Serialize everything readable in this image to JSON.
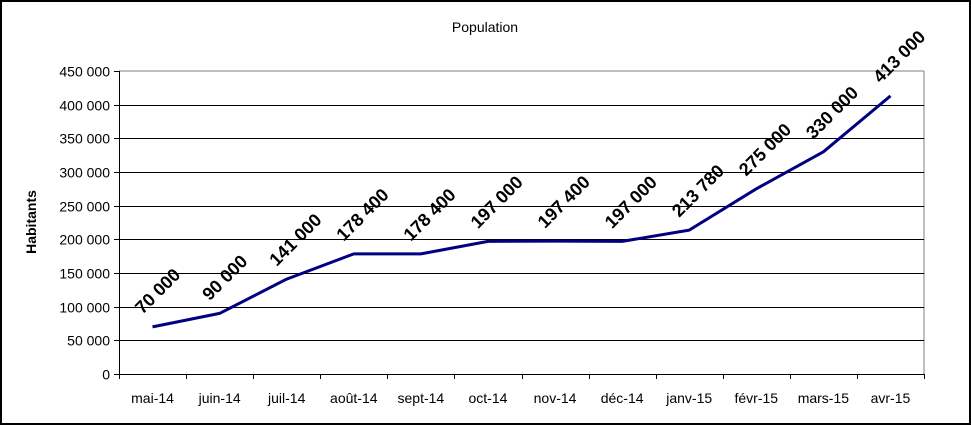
{
  "chart_data": {
    "type": "line",
    "title": "Population",
    "xlabel": "",
    "ylabel": "Habitants",
    "ylim": [
      0,
      450000
    ],
    "yticks": [
      0,
      50000,
      100000,
      150000,
      200000,
      250000,
      300000,
      350000,
      400000,
      450000
    ],
    "ytick_labels": [
      "0",
      "50 000",
      "100 000",
      "150 000",
      "200 000",
      "250 000",
      "300 000",
      "350 000",
      "400 000",
      "450 000"
    ],
    "grid": true,
    "legend": "none",
    "categories": [
      "mai-14",
      "juin-14",
      "juil-14",
      "août-14",
      "sept-14",
      "oct-14",
      "nov-14",
      "déc-14",
      "janv-15",
      "févr-15",
      "mars-15",
      "avr-15"
    ],
    "series": [
      {
        "name": "Population",
        "color": "#000080",
        "values": [
          70000,
          90000,
          141000,
          178400,
          178400,
          197000,
          197400,
          197000,
          213780,
          275000,
          330000,
          413000
        ],
        "data_labels": [
          "70 000",
          "90 000",
          "141 000",
          "178 400",
          "178 400",
          "197 000",
          "197 400",
          "197 000",
          "213 780",
          "275 000",
          "330 000",
          "413 000"
        ]
      }
    ]
  }
}
